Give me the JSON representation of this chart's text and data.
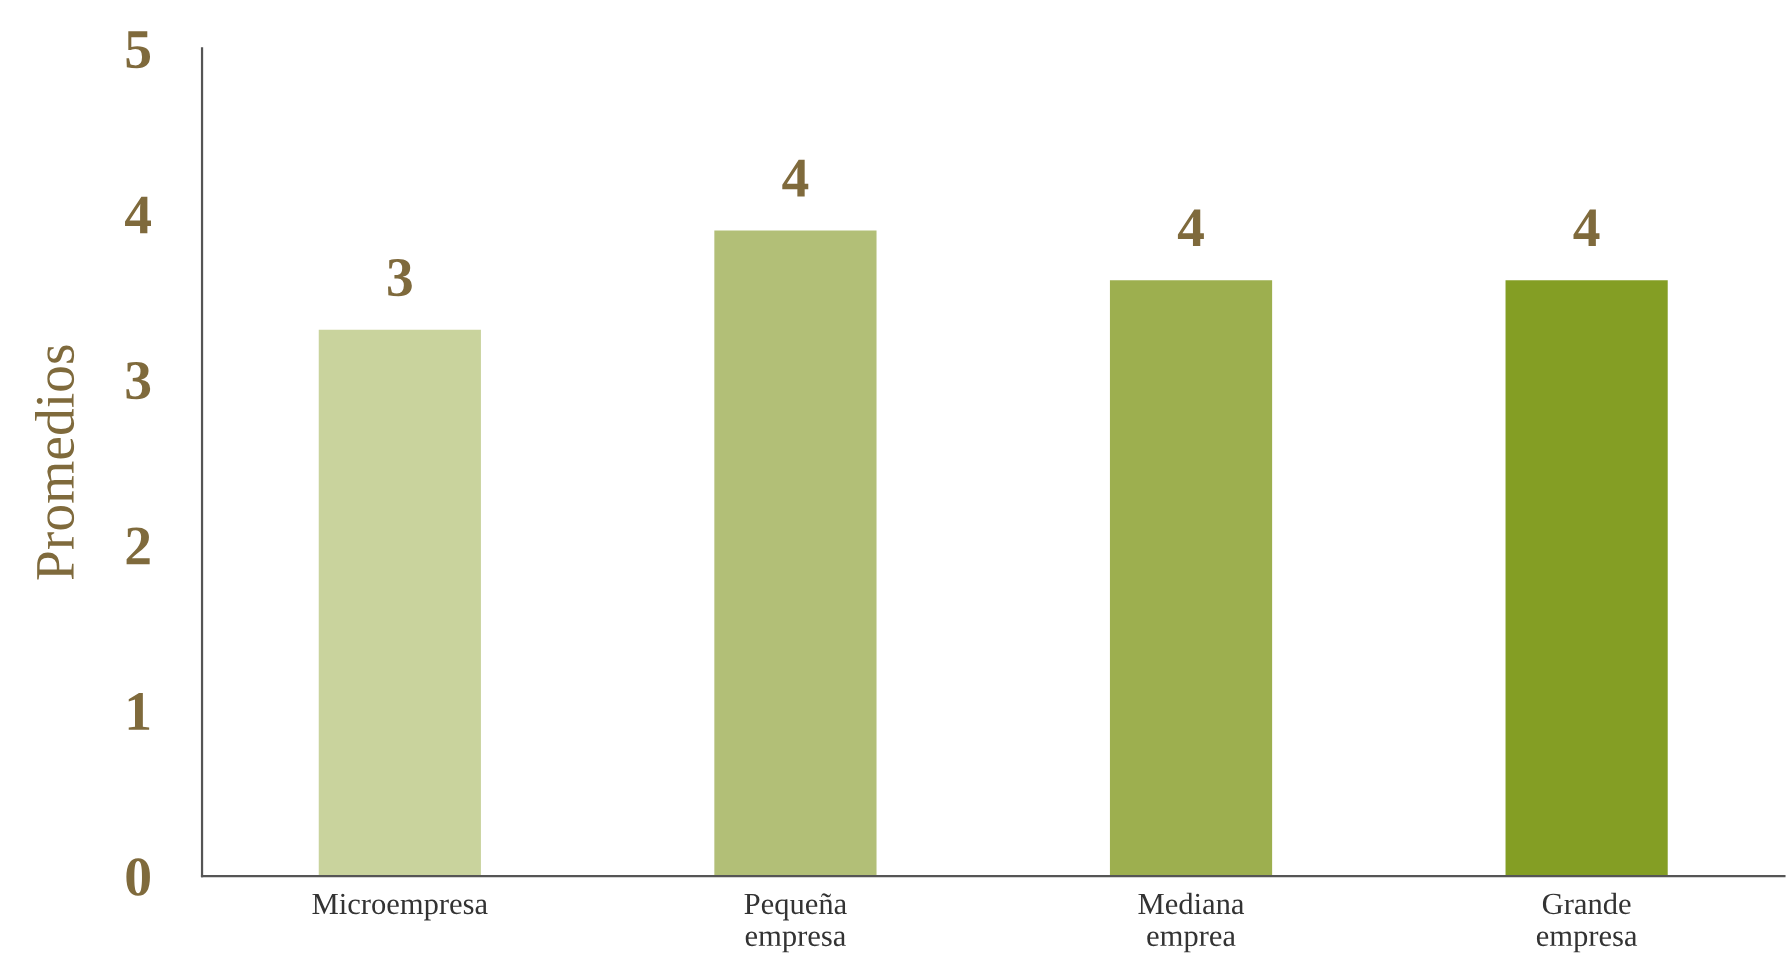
{
  "chart_data": {
    "type": "bar",
    "ylabel": "Promedios",
    "categories": [
      "Microempresa",
      "Pequeña\nempresa",
      "Mediana\nemprea",
      "Grande\nempresa"
    ],
    "values": [
      3.3,
      3.9,
      3.6,
      3.6
    ],
    "colors": [
      "#c9d39d",
      "#b2bf77",
      "#9daf4f",
      "#849e24"
    ],
    "value_labels": [
      "3",
      "4",
      "4",
      "4"
    ],
    "ylim": [
      0,
      5
    ],
    "yticks": [
      0,
      1,
      2,
      3,
      4,
      5
    ],
    "grid": false,
    "legend": false
  }
}
